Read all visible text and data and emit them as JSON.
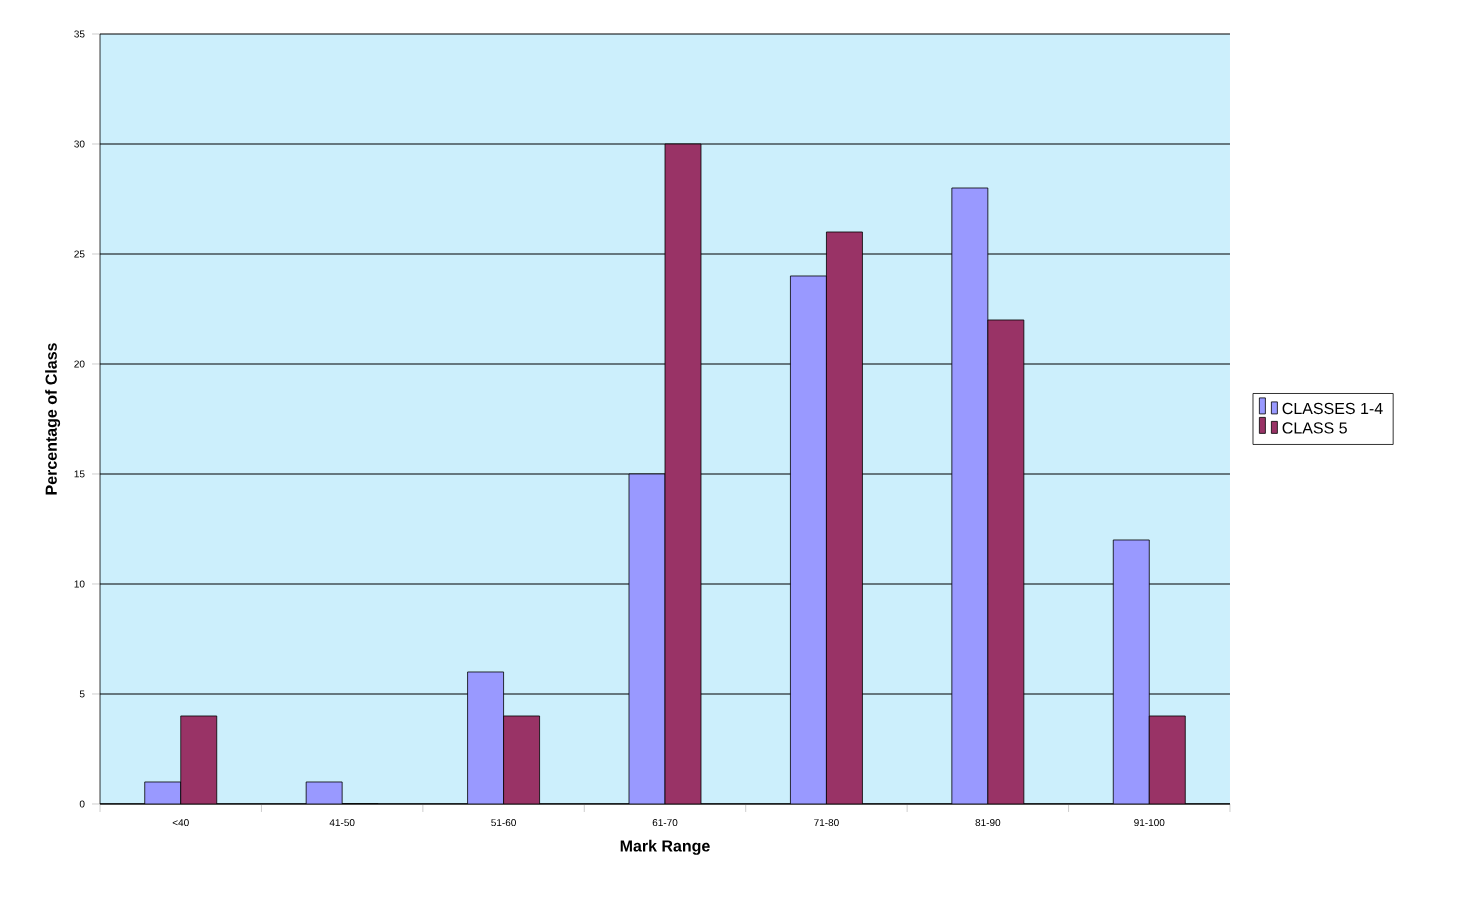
{
  "chart_data": {
    "type": "bar",
    "xlabel": "Mark Range",
    "ylabel": "Percentage of Class",
    "categories": [
      "<40",
      "41-50",
      "51-60",
      "61-70",
      "71-80",
      "81-90",
      "91-100"
    ],
    "series": [
      {
        "name": "CLASSES 1-4",
        "color": "#9999ff",
        "values": [
          1,
          1,
          6,
          15,
          24,
          28,
          12
        ]
      },
      {
        "name": "CLASS 5",
        "color": "#993366",
        "values": [
          4,
          0,
          4,
          30,
          26,
          22,
          4
        ]
      }
    ],
    "ylim": [
      0,
      35
    ],
    "yticks": [
      0,
      5,
      10,
      15,
      20,
      25,
      30,
      35
    ],
    "grid": "y",
    "legend": "right"
  }
}
